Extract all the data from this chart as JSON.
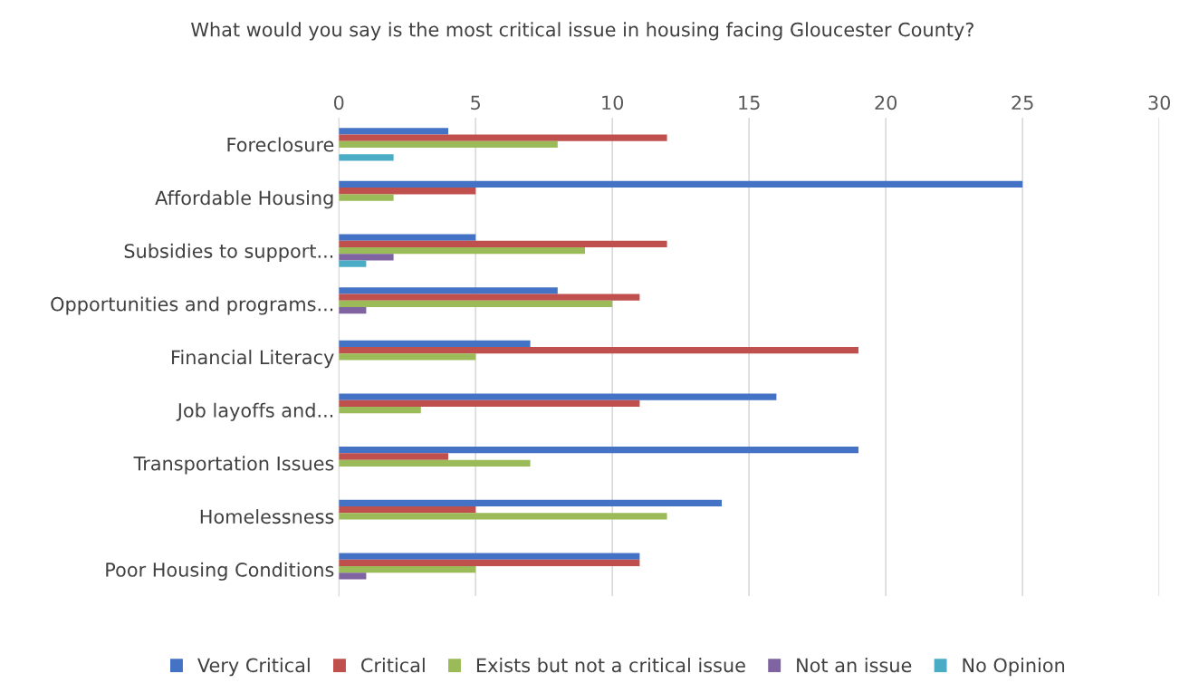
{
  "chart_data": {
    "type": "bar",
    "orientation": "horizontal",
    "title": "What would you say is the most critical issue in housing facing Gloucester County?",
    "categories": [
      "Foreclosure",
      "Affordable Housing",
      "Subsidies to support...",
      "Opportunities and programs...",
      "Financial Literacy",
      "Job layoffs and...",
      "Transportation Issues",
      "Homelessness",
      "Poor Housing Conditions"
    ],
    "series": [
      {
        "name": "Very Critical",
        "color": "#4472c4",
        "values": [
          4,
          25,
          5,
          8,
          7,
          16,
          19,
          14,
          11
        ]
      },
      {
        "name": "Critical",
        "color": "#c0504d",
        "values": [
          12,
          5,
          12,
          11,
          19,
          11,
          4,
          5,
          11
        ]
      },
      {
        "name": "Exists but not a critical issue",
        "color": "#9bbb59",
        "values": [
          8,
          2,
          9,
          10,
          5,
          3,
          7,
          12,
          5
        ]
      },
      {
        "name": "Not an issue",
        "color": "#8064a2",
        "values": [
          0,
          0,
          2,
          1,
          0,
          0,
          0,
          0,
          1
        ]
      },
      {
        "name": "No Opinion",
        "color": "#4bacc6",
        "values": [
          2,
          0,
          1,
          0,
          0,
          0,
          0,
          0,
          0
        ]
      }
    ],
    "xlim": [
      0,
      30
    ],
    "xticks": [
      0,
      5,
      10,
      15,
      20,
      25,
      30
    ],
    "grid": "x",
    "legend": "bottom"
  }
}
